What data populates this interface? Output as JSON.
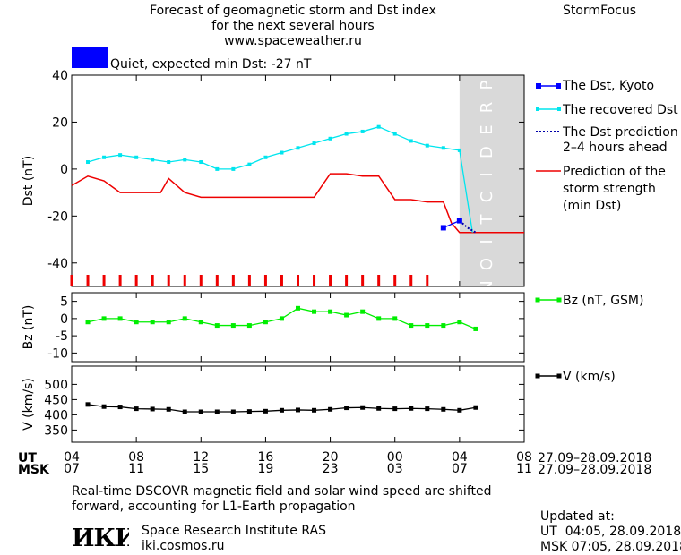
{
  "header": {
    "title_lines": [
      "Forecast of geomagnetic storm and Dst index",
      "for the next several hours",
      "www.spaceweather.ru"
    ],
    "brand": "StormFocus",
    "status_text": "Quiet, expected min Dst: -27 nT",
    "status_color": "#0000ff"
  },
  "legend": {
    "dst_kyoto": "The Dst, Kyoto",
    "recovered": [
      "The recovered Dst"
    ],
    "dst_prediction": [
      "The Dst prediction",
      "2–4 hours ahead"
    ],
    "storm_strength": [
      "Prediction of the",
      "storm strength",
      "(min Dst)"
    ],
    "bz": "Bz (nT, GSM)",
    "v": "V (km/s)"
  },
  "prediction_label": "PREDICTION",
  "time_axis": {
    "ut_label": "UT",
    "msk_label": "MSK",
    "ut_ticks": [
      "04",
      "08",
      "12",
      "16",
      "20",
      "00",
      "04",
      "08"
    ],
    "msk_ticks": [
      "07",
      "11",
      "15",
      "19",
      "23",
      "03",
      "07",
      "11"
    ],
    "date_range_ut": "27.09–28.09.2018",
    "date_range_msk": "27.09–28.09.2018"
  },
  "footer": {
    "note_lines": [
      "Real-time DSCOVR magnetic field and solar wind speed are shifted",
      "forward, accounting for L1-Earth propagation"
    ],
    "institute_name": "Space Research Institute RAS",
    "institute_url": "iki.cosmos.ru",
    "logo_text": "ИКИ",
    "updated_label": "Updated at:",
    "updated_ut": "UT  04:05, 28.09.2018",
    "updated_msk": "MSK 07:05, 28.09.2018"
  },
  "colors": {
    "dst_kyoto": "#0000ff",
    "recovered": "#00e5ee",
    "prediction_dotted": "#0000aa",
    "storm_strength": "#ee0000",
    "bz": "#00ee00",
    "v": "#000000",
    "prediction_band": "#d9d9d9",
    "tick_marks": "#ee0000"
  },
  "chart_data": [
    {
      "type": "line",
      "ylabel": "Dst (nT)",
      "xlim": [
        4,
        32
      ],
      "ylim": [
        -50,
        40
      ],
      "yticks": [
        40,
        20,
        0,
        -20,
        -40
      ],
      "prediction_region": [
        28,
        32
      ],
      "red_tick_times": [
        4,
        5,
        6,
        7,
        8,
        9,
        10,
        11,
        12,
        13,
        14,
        15,
        16,
        17,
        18,
        19,
        20,
        21,
        22,
        23,
        24,
        25,
        26
      ],
      "series": [
        {
          "name": "The recovered Dst",
          "x": [
            5,
            6,
            7,
            8,
            9,
            10,
            11,
            12,
            13,
            14,
            15,
            16,
            17,
            18,
            19,
            20,
            21,
            22,
            23,
            24,
            25,
            26,
            27,
            28,
            28.8
          ],
          "y": [
            3,
            5,
            6,
            5,
            4,
            3,
            4,
            3,
            0,
            0,
            2,
            5,
            7,
            9,
            11,
            13,
            15,
            16,
            18,
            15,
            12,
            10,
            9,
            8,
            -27
          ]
        },
        {
          "name": "The Dst, Kyoto",
          "x": [
            27,
            28
          ],
          "y": [
            -25,
            -22
          ]
        },
        {
          "name": "The Dst prediction 2–4 hours ahead",
          "x": [
            28,
            28.5,
            29
          ],
          "y": [
            -22,
            -25,
            -27
          ]
        },
        {
          "name": "Prediction of the storm strength (min Dst)",
          "x": [
            4,
            5,
            6,
            7,
            8,
            9,
            9.5,
            10,
            11,
            12,
            13,
            14,
            15,
            16,
            17,
            18,
            19,
            20,
            21,
            22,
            23,
            24,
            25,
            26,
            27,
            27.5,
            28,
            29,
            30,
            31,
            32
          ],
          "y": [
            -7,
            -3,
            -5,
            -10,
            -10,
            -10,
            -10,
            -4,
            -10,
            -12,
            -12,
            -12,
            -12,
            -12,
            -12,
            -12,
            -12,
            -2,
            -2,
            -3,
            -3,
            -13,
            -13,
            -14,
            -14,
            -23,
            -27,
            -27,
            -27,
            -27,
            -27
          ]
        }
      ]
    },
    {
      "type": "line",
      "ylabel": "Bz (nT)",
      "xlim": [
        4,
        32
      ],
      "ylim": [
        -12.5,
        7.5
      ],
      "yticks": [
        5,
        0,
        -5,
        -10
      ],
      "series": [
        {
          "name": "Bz (nT, GSM)",
          "x": [
            5,
            6,
            7,
            8,
            9,
            10,
            11,
            12,
            13,
            14,
            15,
            16,
            17,
            18,
            19,
            20,
            21,
            22,
            23,
            24,
            25,
            26,
            27,
            28,
            29
          ],
          "y": [
            -1,
            0,
            0,
            -1,
            -1,
            -1,
            0,
            -1,
            -2,
            -2,
            -2,
            -1,
            0,
            3,
            2,
            2,
            1,
            2,
            0,
            0,
            -2,
            -2,
            -2,
            -1,
            -3
          ]
        }
      ]
    },
    {
      "type": "line",
      "ylabel": "V (km/s)",
      "xlim": [
        4,
        32
      ],
      "ylim": [
        310,
        560
      ],
      "yticks": [
        500,
        450,
        400,
        350
      ],
      "series": [
        {
          "name": "V (km/s)",
          "x": [
            5,
            6,
            7,
            8,
            9,
            10,
            11,
            12,
            13,
            14,
            15,
            16,
            17,
            18,
            19,
            20,
            21,
            22,
            23,
            24,
            25,
            26,
            27,
            28,
            29
          ],
          "y": [
            434,
            427,
            426,
            420,
            419,
            418,
            410,
            410,
            410,
            410,
            411,
            412,
            415,
            416,
            415,
            418,
            423,
            424,
            421,
            420,
            421,
            420,
            418,
            415,
            424
          ]
        }
      ]
    }
  ]
}
